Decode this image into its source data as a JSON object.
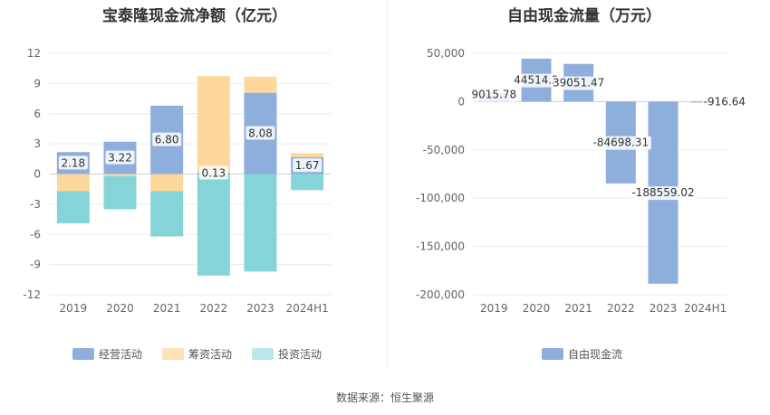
{
  "footer": {
    "source": "数据来源：恒生聚源"
  },
  "chart_data": [
    {
      "type": "bar",
      "stacked": true,
      "title": "宝泰隆现金流净额（亿元）",
      "categories": [
        "2019",
        "2020",
        "2021",
        "2022",
        "2023",
        "2024H1"
      ],
      "y_ticks": [
        12,
        9,
        6,
        3,
        0,
        -3,
        -6,
        -9,
        -12
      ],
      "ylim": [
        -12,
        12
      ],
      "grid": true,
      "legend_position": "bottom",
      "series": [
        {
          "name": "经营活动",
          "color": "#8eaedb",
          "values": [
            2.18,
            3.22,
            6.8,
            0.13,
            8.08,
            1.67
          ]
        },
        {
          "name": "筹资活动",
          "color": "#fdd89a",
          "values": [
            -1.7,
            -0.2,
            -1.7,
            9.6,
            1.6,
            0.4
          ]
        },
        {
          "name": "投资活动",
          "color": "#85d5d8",
          "values": [
            -3.2,
            -3.3,
            -4.5,
            -10.1,
            -9.7,
            -1.6
          ]
        }
      ],
      "data_labels": [
        "2.18",
        "3.22",
        "6.80",
        "0.13",
        "8.08",
        "1.67"
      ]
    },
    {
      "type": "bar",
      "title": "自由现金流量（万元）",
      "categories": [
        "2019",
        "2020",
        "2021",
        "2022",
        "2023",
        "2024H1"
      ],
      "y_ticks": [
        "50,000",
        "0",
        "-50,000",
        "-100,000",
        "-150,000",
        "-200,000"
      ],
      "y_tick_values": [
        50000,
        0,
        -50000,
        -100000,
        -150000,
        -200000
      ],
      "ylim": [
        -200000,
        50000
      ],
      "grid": true,
      "legend_position": "bottom",
      "series": [
        {
          "name": "自由现金流",
          "color": "#8eaedb",
          "values": [
            9015.78,
            44514.2,
            39051.47,
            -84698.31,
            -188559.02,
            -916.64
          ]
        }
      ],
      "data_labels": [
        "9015.78",
        "44514.2",
        "39051.47",
        "-84698.31",
        "-188559.02",
        "-916.64"
      ]
    }
  ]
}
